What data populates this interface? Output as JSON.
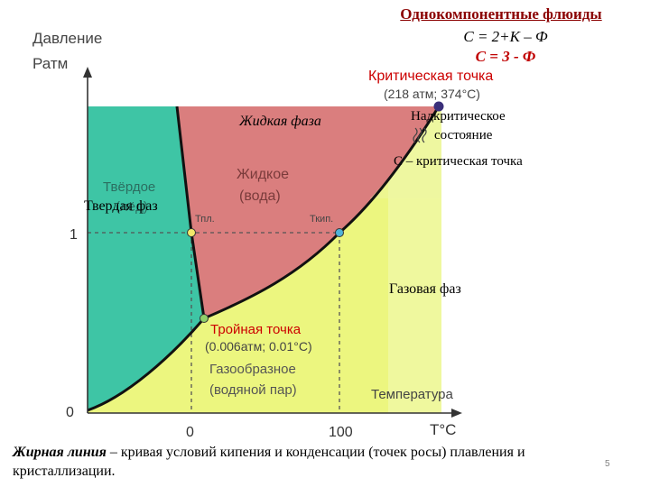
{
  "header": {
    "title": "Однокомпонентные флюиды",
    "formula_general": "С = 2+К – Ф",
    "formula_specific": "С = 3 - Ф"
  },
  "axes": {
    "y_title_line1": "Давление",
    "y_title_line2": "Ратм",
    "x_title": "Температура",
    "x_unit": "T°C",
    "y_tick_1": "1",
    "y_tick_0": "0",
    "x_tick_0": "0",
    "x_tick_100": "100"
  },
  "regions": {
    "solid": "Твёрдое (лёд)",
    "solid_line1": "Твёрдое",
    "solid_line2": "(лёд)",
    "liquid_line1": "Жидкое",
    "liquid_line2": "(вода)",
    "gas_line1": "Газообразное",
    "gas_line2": "(водяной пар)"
  },
  "points": {
    "critical_title": "Критическая точка",
    "critical_values": "(218 атм; 374°C)",
    "triple_title": "Тройная точка",
    "triple_values": "(0.006атм; 0.01°C)",
    "t_melt": "Тпл.",
    "t_boil": "Ткип."
  },
  "overlay": {
    "liquid_phase": "Жидкая фаза",
    "solid_phase": "Твердая фаз",
    "supercritical_line1": "Надкритическое",
    "supercritical_line2": "состояние",
    "c_critical": "С – критическая точка",
    "gas_phase": "Газовая фаз"
  },
  "caption": {
    "bold": "Жирная линия",
    "text": " – кривая условий кипения и конденсации (точек росы) плавления и кристаллизации."
  },
  "page_number": "5",
  "colors": {
    "solid_region": "#3fc7a6",
    "liquid_region": "#db7f7f",
    "gas_region": "#e9f57a",
    "gas_region_light": "#f4f9c6",
    "critical_dot": "#3a2f7a",
    "triple_label": "#cc0000",
    "critical_label": "#cc0000"
  }
}
